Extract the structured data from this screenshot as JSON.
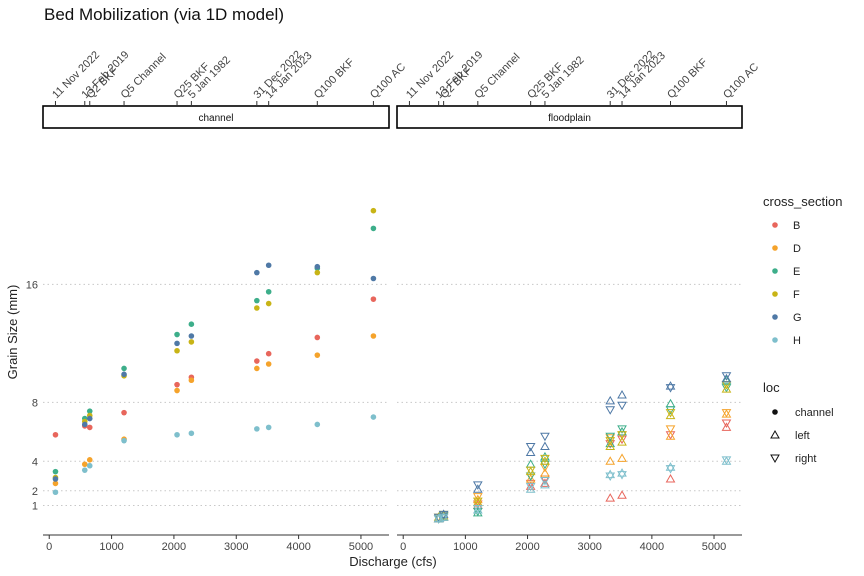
{
  "chart_data": {
    "type": "scatter",
    "title": "Bed Mobilization (via 1D model)",
    "xlabel": "Discharge (cfs)",
    "ylabel": "Grain Size (mm)",
    "xlim": [
      -100,
      5450
    ],
    "ylim": [
      -1,
      26
    ],
    "x_ticks": [
      0,
      1000,
      2000,
      3000,
      4000,
      5000
    ],
    "y_ticks": [
      1,
      2,
      4,
      8,
      16
    ],
    "y_gridlines": "dotted horizontal at y ticks",
    "top_axis": {
      "ticks": [
        {
          "x": 100,
          "label": "11 Nov 2022"
        },
        {
          "x": 570,
          "label": "13 Feb 2019"
        },
        {
          "x": 650,
          "label": "Q2 BKF"
        },
        {
          "x": 1200,
          "label": "Q5 Channel"
        },
        {
          "x": 2050,
          "label": "Q25 BKF"
        },
        {
          "x": 2280,
          "label": "5 Jan 1982"
        },
        {
          "x": 3330,
          "label": "31 Dec 2022"
        },
        {
          "x": 3520,
          "label": "14 Jan 2023"
        },
        {
          "x": 4300,
          "label": "Q100 BKF"
        },
        {
          "x": 5200,
          "label": "Q100 AC"
        }
      ]
    },
    "facets": [
      {
        "name": "channel",
        "series": [
          {
            "cross_section": "B",
            "loc": "channel",
            "points": [
              [
                100,
                5.8
              ],
              [
                570,
                6.4
              ],
              [
                650,
                6.3
              ],
              [
                1200,
                7.3
              ],
              [
                2050,
                9.2
              ],
              [
                2280,
                9.7
              ],
              [
                3330,
                10.8
              ],
              [
                3520,
                11.3
              ],
              [
                4300,
                12.4
              ],
              [
                5200,
                15.0
              ]
            ]
          },
          {
            "cross_section": "D",
            "loc": "channel",
            "points": [
              [
                100,
                2.5
              ],
              [
                570,
                3.8
              ],
              [
                650,
                4.1
              ],
              [
                1200,
                5.5
              ],
              [
                2050,
                8.8
              ],
              [
                2280,
                9.5
              ],
              [
                3330,
                10.3
              ],
              [
                3520,
                10.6
              ],
              [
                4300,
                11.2
              ],
              [
                5200,
                12.5
              ]
            ]
          },
          {
            "cross_section": "E",
            "loc": "channel",
            "points": [
              [
                100,
                3.3
              ],
              [
                570,
                6.9
              ],
              [
                650,
                7.4
              ],
              [
                1200,
                10.3
              ],
              [
                2050,
                12.6
              ],
              [
                2280,
                13.3
              ],
              [
                3330,
                14.9
              ],
              [
                3520,
                15.5
              ],
              [
                4300,
                17.1
              ],
              [
                5200,
                19.8
              ]
            ]
          },
          {
            "cross_section": "F",
            "loc": "channel",
            "points": [
              [
                100,
                2.9
              ],
              [
                570,
                6.7
              ],
              [
                650,
                7.1
              ],
              [
                1200,
                9.8
              ],
              [
                2050,
                11.5
              ],
              [
                2280,
                12.1
              ],
              [
                3330,
                14.4
              ],
              [
                3520,
                14.7
              ],
              [
                4300,
                16.8
              ],
              [
                5200,
                21.0
              ]
            ]
          },
          {
            "cross_section": "G",
            "loc": "channel",
            "points": [
              [
                100,
                2.8
              ],
              [
                570,
                6.5
              ],
              [
                650,
                6.9
              ],
              [
                1200,
                9.9
              ],
              [
                2050,
                12.0
              ],
              [
                2280,
                12.5
              ],
              [
                3330,
                16.8
              ],
              [
                3520,
                17.3
              ],
              [
                4300,
                17.2
              ],
              [
                5200,
                16.4
              ]
            ]
          },
          {
            "cross_section": "H",
            "loc": "channel",
            "points": [
              [
                100,
                1.9
              ],
              [
                570,
                3.4
              ],
              [
                650,
                3.7
              ],
              [
                1200,
                5.4
              ],
              [
                2050,
                5.8
              ],
              [
                2280,
                5.9
              ],
              [
                3330,
                6.2
              ],
              [
                3520,
                6.3
              ],
              [
                4300,
                6.5
              ],
              [
                5200,
                7.0
              ]
            ]
          }
        ]
      },
      {
        "name": "floodplain",
        "series": [
          {
            "cross_section": "B",
            "loc": "left",
            "points": [
              [
                570,
                0.1
              ],
              [
                650,
                0.2
              ],
              [
                1200,
                1.0
              ],
              [
                2050,
                2.3
              ],
              [
                2280,
                2.5
              ],
              [
                3330,
                1.5
              ],
              [
                3520,
                1.7
              ],
              [
                4300,
                2.8
              ],
              [
                5200,
                6.3
              ]
            ]
          },
          {
            "cross_section": "B",
            "loc": "right",
            "points": [
              [
                570,
                0.1
              ],
              [
                650,
                0.2
              ],
              [
                1200,
                1.1
              ],
              [
                2050,
                2.5
              ],
              [
                2280,
                2.8
              ],
              [
                3330,
                5.2
              ],
              [
                3520,
                5.5
              ],
              [
                4300,
                5.8
              ],
              [
                5200,
                6.6
              ]
            ]
          },
          {
            "cross_section": "D",
            "loc": "left",
            "points": [
              [
                570,
                0.1
              ],
              [
                650,
                0.3
              ],
              [
                1200,
                1.4
              ],
              [
                2050,
                2.8
              ],
              [
                2280,
                3.2
              ],
              [
                3330,
                4.0
              ],
              [
                3520,
                4.2
              ],
              [
                4300,
                5.7
              ],
              [
                5200,
                7.2
              ]
            ]
          },
          {
            "cross_section": "D",
            "loc": "right",
            "points": [
              [
                570,
                0.2
              ],
              [
                650,
                0.3
              ],
              [
                1200,
                1.6
              ],
              [
                2050,
                3.0
              ],
              [
                2280,
                3.6
              ],
              [
                3330,
                5.6
              ],
              [
                3520,
                5.8
              ],
              [
                4300,
                6.2
              ],
              [
                5200,
                7.3
              ]
            ]
          },
          {
            "cross_section": "E",
            "loc": "left",
            "points": [
              [
                570,
                0.1
              ],
              [
                650,
                0.2
              ],
              [
                1200,
                0.5
              ],
              [
                2050,
                3.8
              ],
              [
                2280,
                4.3
              ],
              [
                3330,
                5.2
              ],
              [
                3520,
                6.0
              ],
              [
                4300,
                7.9
              ],
              [
                5200,
                9.5
              ]
            ]
          },
          {
            "cross_section": "E",
            "loc": "right",
            "points": [
              [
                570,
                0.1
              ],
              [
                650,
                0.3
              ],
              [
                1200,
                0.6
              ],
              [
                2050,
                3.0
              ],
              [
                2280,
                3.8
              ],
              [
                3330,
                5.7
              ],
              [
                3520,
                6.2
              ],
              [
                4300,
                7.5
              ],
              [
                5200,
                9.0
              ]
            ]
          },
          {
            "cross_section": "F",
            "loc": "left",
            "points": [
              [
                570,
                0.2
              ],
              [
                650,
                0.3
              ],
              [
                1200,
                1.2
              ],
              [
                2050,
                3.3
              ],
              [
                2280,
                4.0
              ],
              [
                3330,
                5.0
              ],
              [
                3520,
                5.3
              ],
              [
                4300,
                7.1
              ],
              [
                5200,
                8.9
              ]
            ]
          },
          {
            "cross_section": "F",
            "loc": "right",
            "points": [
              [
                570,
                0.2
              ],
              [
                650,
                0.4
              ],
              [
                1200,
                1.3
              ],
              [
                2050,
                3.4
              ],
              [
                2280,
                4.2
              ],
              [
                3330,
                5.4
              ],
              [
                3520,
                5.8
              ],
              [
                4300,
                7.3
              ],
              [
                5200,
                9.2
              ]
            ]
          },
          {
            "cross_section": "G",
            "loc": "left",
            "points": [
              [
                570,
                0.1
              ],
              [
                650,
                0.4
              ],
              [
                1200,
                2.1
              ],
              [
                2050,
                4.6
              ],
              [
                2280,
                5.0
              ],
              [
                3330,
                8.1
              ],
              [
                3520,
                8.5
              ],
              [
                4300,
                9.1
              ],
              [
                5200,
                9.6
              ]
            ]
          },
          {
            "cross_section": "G",
            "loc": "right",
            "points": [
              [
                570,
                0.2
              ],
              [
                650,
                0.4
              ],
              [
                1200,
                2.4
              ],
              [
                2050,
                5.0
              ],
              [
                2280,
                5.7
              ],
              [
                3330,
                7.5
              ],
              [
                3520,
                7.8
              ],
              [
                4300,
                9.0
              ],
              [
                5200,
                9.8
              ]
            ]
          },
          {
            "cross_section": "H",
            "loc": "left",
            "points": [
              [
                570,
                0.1
              ],
              [
                650,
                0.2
              ],
              [
                1200,
                0.7
              ],
              [
                2050,
                2.1
              ],
              [
                2280,
                2.4
              ],
              [
                3330,
                3.1
              ],
              [
                3520,
                3.2
              ],
              [
                4300,
                3.6
              ],
              [
                5200,
                4.0
              ]
            ]
          },
          {
            "cross_section": "H",
            "loc": "right",
            "points": [
              [
                570,
                0.1
              ],
              [
                650,
                0.2
              ],
              [
                1200,
                0.8
              ],
              [
                2050,
                2.3
              ],
              [
                2280,
                2.7
              ],
              [
                3330,
                3.0
              ],
              [
                3520,
                3.1
              ],
              [
                4300,
                3.5
              ],
              [
                5200,
                4.1
              ]
            ]
          }
        ]
      }
    ],
    "legend": {
      "placement": "right",
      "color_title": "cross_section",
      "color_entries": [
        {
          "label": "B",
          "color": "#E8665C"
        },
        {
          "label": "D",
          "color": "#F5A32B"
        },
        {
          "label": "E",
          "color": "#3DAE8A"
        },
        {
          "label": "F",
          "color": "#C8B416"
        },
        {
          "label": "G",
          "color": "#4F79A6"
        },
        {
          "label": "H",
          "color": "#7EBFCC"
        }
      ],
      "shape_title": "loc",
      "shape_entries": [
        {
          "label": "channel",
          "shape": "filled-circle"
        },
        {
          "label": "left",
          "shape": "open-triangle-up"
        },
        {
          "label": "right",
          "shape": "open-triangle-down"
        }
      ]
    }
  }
}
